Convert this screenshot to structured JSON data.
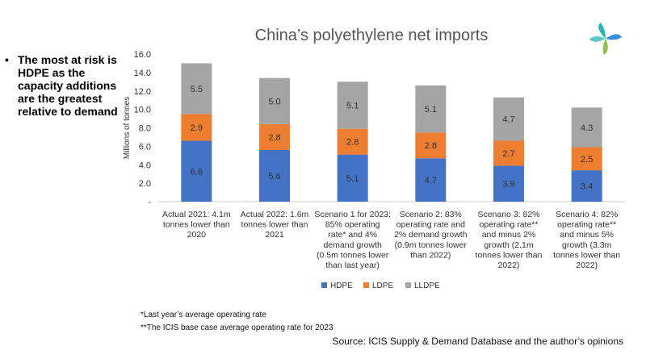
{
  "bullet": {
    "text": "The most at risk is HDPE as the capacity additions are the greatest relative to demand"
  },
  "footnotes": {
    "note1": "*Last year’s average operating rate",
    "note2": "**The ICIS base case average operating rate for 2023"
  },
  "source": "Source: ICIS Supply & Demand Database and the author’s opinions",
  "colors": {
    "HDPE": "#4472c4",
    "LDPE": "#ed7d31",
    "LLDPE": "#a5a5a5",
    "logo_teal": "#2ab3b8",
    "logo_blue": "#3c8fd6",
    "logo_green": "#8cc63f"
  },
  "chart_data": {
    "type": "bar",
    "stacked": true,
    "title": "China’s polyethylene net imports",
    "ylabel": "Millions of tonnes",
    "xlabel": "",
    "ylim": [
      0,
      16
    ],
    "yticks": [
      "-",
      "2.0",
      "4.0",
      "6.0",
      "8.0",
      "10.0",
      "12.0",
      "14.0",
      "16.0"
    ],
    "grid": false,
    "legend": "bottom",
    "categories": [
      [
        "Actual 2021: 4.1m",
        "tonnes lower than",
        "2020"
      ],
      [
        "Actual 2022: 1.6m",
        "tonnes lower than",
        "2021"
      ],
      [
        "Scenario 1 for 2023:",
        "85% operating",
        "rate* and 4%",
        "demand growth",
        "(0.5m tonnes lower",
        "than last year)"
      ],
      [
        "Scenario 2: 83%",
        "operating rate and",
        "2% demand growth",
        "(0.9m tonnes lower",
        "than 2022)"
      ],
      [
        "Scenario 3: 82%",
        "operating rate**",
        "and minus 2%",
        "growth (2.1m",
        "tonnes lower than",
        "2022)"
      ],
      [
        "Scenario 4: 82%",
        "operating rate**",
        "and minus 5%",
        "growth (3.3m",
        "tonnes lower than",
        "2022)"
      ]
    ],
    "series": [
      {
        "name": "HDPE",
        "values": [
          6.6,
          5.6,
          5.1,
          4.7,
          3.9,
          3.4
        ],
        "labels": [
          "6.6",
          "5.6",
          "5.1",
          "4.7",
          "3.9",
          "3.4"
        ]
      },
      {
        "name": "LDPE",
        "values": [
          2.9,
          2.8,
          2.8,
          2.8,
          2.7,
          2.5
        ],
        "labels": [
          "2.9",
          "2.8",
          "2.8",
          "2.8",
          "2.7",
          "2.5"
        ]
      },
      {
        "name": "LLDPE",
        "values": [
          5.5,
          5.0,
          5.1,
          5.1,
          4.7,
          4.3
        ],
        "labels": [
          "5.5",
          "5.0",
          "5.1",
          "5.1",
          "4.7",
          "4.3"
        ]
      }
    ]
  }
}
